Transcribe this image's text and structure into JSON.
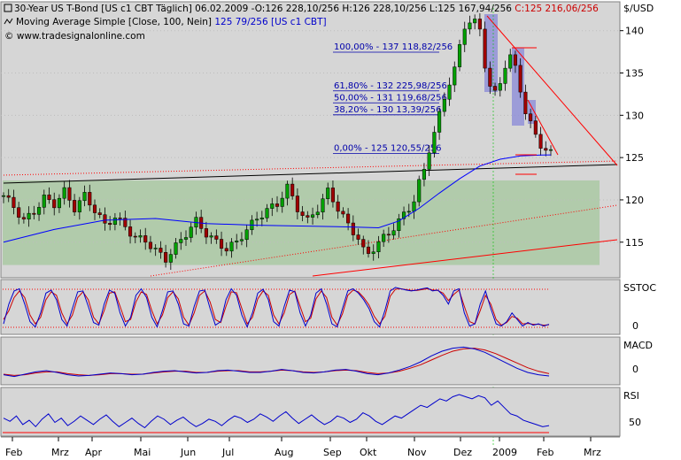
{
  "header": {
    "line1_name": "30-Year US T-Bond [US c1 CBT  Täglich]",
    "line1_date": "06.02.2009",
    "line1_open": "-O:126 228,10/256",
    "line1_hl": "H:126 228,10/256 L:125 167,94/256",
    "line1_close": "C:125 216,06/256",
    "line2_name": "Moving Average Simple [Close, 100, Nein]",
    "line2_value": "125 79/256",
    "line2_sym": "[US c1 CBT]",
    "line3": "© www.tradesignalonline.com"
  },
  "colors": {
    "background": "#d4d0c8",
    "plot": "#ffffff",
    "up_candle": "#00a000",
    "down_candle": "#a00000",
    "ma_line": "#0000ff",
    "trend_red": "#ff0000",
    "green_zone": "#a8c8a0",
    "blue_zone": "#8888d8",
    "stoch_k": "#0000cc",
    "stoch_d": "#cc0000"
  },
  "chart_data": [
    {
      "type": "candlestick",
      "instrument": "30-Year US T-Bond",
      "unit_label": "$/USD",
      "ylim": [
        111,
        143
      ],
      "yticks": [
        115,
        120,
        125,
        130,
        135,
        140
      ],
      "x_labels": [
        "Feb",
        "Mrz",
        "Apr",
        "Mai",
        "Jun",
        "Jul",
        "Aug",
        "Sep",
        "Okt",
        "Nov",
        "Dez",
        "2009",
        "Feb",
        "Mrz"
      ],
      "close_path": [
        [
          0,
          120.5
        ],
        [
          2,
          119.2
        ],
        [
          4,
          117.5
        ],
        [
          6,
          118.6
        ],
        [
          8,
          120.2
        ],
        [
          10,
          119.5
        ],
        [
          12,
          121.0
        ],
        [
          14,
          119.0
        ],
        [
          16,
          120.5
        ],
        [
          18,
          118.8
        ],
        [
          20,
          117.0
        ],
        [
          22,
          118.0
        ],
        [
          24,
          116.8
        ],
        [
          26,
          115.5
        ],
        [
          28,
          115.2
        ],
        [
          30,
          114.0
        ],
        [
          32,
          113.0
        ],
        [
          34,
          114.5
        ],
        [
          36,
          116.0
        ],
        [
          38,
          117.5
        ],
        [
          40,
          116.0
        ],
        [
          42,
          115.0
        ],
        [
          44,
          114.2
        ],
        [
          46,
          115.0
        ],
        [
          48,
          116.5
        ],
        [
          50,
          117.8
        ],
        [
          52,
          118.8
        ],
        [
          54,
          119.5
        ],
        [
          56,
          121.5
        ],
        [
          58,
          119.0
        ],
        [
          60,
          117.5
        ],
        [
          62,
          119.0
        ],
        [
          64,
          121.0
        ],
        [
          66,
          119.0
        ],
        [
          68,
          117.0
        ],
        [
          70,
          115.5
        ],
        [
          71,
          114.0
        ],
        [
          72,
          113.6
        ],
        [
          74,
          115.0
        ],
        [
          76,
          116.0
        ],
        [
          78,
          117.5
        ],
        [
          80,
          119.0
        ],
        [
          81,
          120.0
        ],
        [
          82,
          122.0
        ],
        [
          83,
          123.5
        ],
        [
          84,
          126.0
        ],
        [
          85,
          128.0
        ],
        [
          86,
          130.0
        ],
        [
          87,
          132.0
        ],
        [
          88,
          134.0
        ],
        [
          89,
          135.5
        ],
        [
          90,
          138.0
        ],
        [
          91,
          140.5
        ],
        [
          92,
          141.2
        ],
        [
          93,
          141.0
        ],
        [
          94,
          140.0
        ],
        [
          95,
          136.0
        ],
        [
          96,
          133.5
        ],
        [
          97,
          132.5
        ],
        [
          98,
          133.8
        ],
        [
          99,
          136.0
        ],
        [
          100,
          137.0
        ],
        [
          101,
          135.5
        ],
        [
          102,
          133.0
        ],
        [
          103,
          130.5
        ],
        [
          104,
          129.0
        ],
        [
          105,
          127.5
        ],
        [
          106,
          126.5
        ],
        [
          107,
          126.0
        ],
        [
          108,
          125.5
        ]
      ],
      "moving_average": [
        [
          0,
          115.0
        ],
        [
          10,
          116.5
        ],
        [
          20,
          117.6
        ],
        [
          30,
          117.8
        ],
        [
          40,
          117.2
        ],
        [
          50,
          117.0
        ],
        [
          60,
          116.9
        ],
        [
          68,
          116.8
        ],
        [
          74,
          116.7
        ],
        [
          78,
          117.5
        ],
        [
          82,
          119.0
        ],
        [
          86,
          120.8
        ],
        [
          90,
          122.5
        ],
        [
          94,
          124.0
        ],
        [
          98,
          124.8
        ],
        [
          102,
          125.2
        ],
        [
          106,
          125.3
        ],
        [
          108,
          125.31
        ]
      ],
      "fibonacci_levels": [
        {
          "label": "100,00% - 137 118,82/256",
          "value": 137.46
        },
        {
          "label": "61,80% - 132 225,98/256",
          "value": 132.88
        },
        {
          "label": "50,00% - 131 119,68/256",
          "value": 131.47
        },
        {
          "label": "38,20% - 130 13,39/256",
          "value": 130.05
        },
        {
          "label": "0,00% - 125 120,55/256",
          "value": 125.47
        }
      ],
      "channel_zone": {
        "from": 0,
        "to": 121,
        "low": 112.3,
        "high": 122.3
      }
    },
    {
      "type": "line",
      "name": "SSTOC",
      "yticks": [
        0
      ],
      "ylim": [
        -5,
        110
      ],
      "series": [
        {
          "values": [
            15,
            60,
            90,
            95,
            60,
            20,
            8,
            40,
            85,
            92,
            70,
            25,
            10,
            50,
            88,
            90,
            55,
            18,
            12,
            60,
            92,
            85,
            40,
            10,
            30,
            80,
            95,
            75,
            30,
            8,
            45,
            88,
            90,
            60,
            15,
            10,
            55,
            90,
            92,
            50,
            12,
            20,
            70,
            95,
            80,
            35,
            8,
            40,
            85,
            94,
            70,
            20,
            10,
            55,
            92,
            88,
            40,
            10,
            35,
            85,
            95,
            60,
            15,
            8,
            50,
            90,
            95,
            85,
            70,
            50,
            20,
            8,
            45,
            90,
            98,
            95,
            92,
            90,
            92,
            95,
            97,
            90,
            92,
            80,
            60,
            90,
            95,
            40,
            10,
            15,
            60,
            90,
            50,
            15,
            10,
            20,
            40,
            25,
            10,
            18,
            12,
            15,
            10,
            14
          ]
        },
        {
          "values": [
            25,
            45,
            75,
            90,
            75,
            35,
            15,
            30,
            70,
            88,
            80,
            40,
            15,
            35,
            75,
            88,
            70,
            30,
            15,
            45,
            85,
            88,
            55,
            20,
            25,
            65,
            88,
            82,
            45,
            15,
            35,
            75,
            88,
            72,
            30,
            12,
            40,
            80,
            90,
            65,
            25,
            18,
            55,
            88,
            86,
            50,
            15,
            30,
            72,
            90,
            80,
            35,
            15,
            40,
            82,
            90,
            55,
            20,
            28,
            72,
            90,
            75,
            30,
            12,
            38,
            80,
            92,
            88,
            75,
            58,
            32,
            15,
            32,
            78,
            94,
            95,
            93,
            91,
            91,
            93,
            95,
            92,
            91,
            85,
            68,
            82,
            92,
            55,
            20,
            15,
            45,
            80,
            60,
            25,
            12,
            18,
            32,
            28,
            15,
            16,
            14,
            14,
            12,
            13
          ]
        }
      ]
    },
    {
      "type": "line",
      "name": "MACD",
      "yticks": [
        0
      ],
      "ylim": [
        -2.0,
        5.5
      ],
      "series": [
        {
          "values": [
            -0.6,
            -0.9,
            -0.5,
            -0.1,
            0.1,
            -0.2,
            -0.6,
            -0.8,
            -0.7,
            -0.5,
            -0.3,
            -0.4,
            -0.6,
            -0.5,
            -0.2,
            0.0,
            0.1,
            -0.1,
            -0.3,
            -0.2,
            0.1,
            0.2,
            0.0,
            -0.2,
            -0.2,
            0.0,
            0.3,
            0.1,
            -0.2,
            -0.3,
            -0.1,
            0.2,
            0.3,
            0.0,
            -0.4,
            -0.6,
            -0.3,
            0.2,
            0.8,
            1.6,
            2.6,
            3.4,
            3.9,
            4.1,
            3.8,
            3.2,
            2.3,
            1.4,
            0.5,
            -0.2,
            -0.6,
            -0.8
          ]
        },
        {
          "values": [
            -0.5,
            -0.7,
            -0.6,
            -0.3,
            -0.1,
            -0.1,
            -0.4,
            -0.6,
            -0.7,
            -0.6,
            -0.4,
            -0.4,
            -0.5,
            -0.5,
            -0.3,
            -0.1,
            0.0,
            0.0,
            -0.2,
            -0.2,
            0.0,
            0.1,
            0.1,
            -0.1,
            -0.1,
            0.0,
            0.2,
            0.1,
            -0.1,
            -0.2,
            -0.1,
            0.1,
            0.2,
            0.1,
            -0.2,
            -0.4,
            -0.3,
            0.0,
            0.5,
            1.1,
            1.9,
            2.7,
            3.4,
            3.8,
            3.9,
            3.6,
            3.0,
            2.2,
            1.4,
            0.6,
            0.0,
            -0.4
          ]
        }
      ]
    },
    {
      "type": "line",
      "name": "RSI",
      "yticks": [
        50
      ],
      "ylim": [
        42,
        85
      ],
      "series": [
        {
          "values": [
            58,
            55,
            60,
            52,
            56,
            50,
            57,
            62,
            54,
            58,
            51,
            55,
            60,
            56,
            52,
            57,
            61,
            55,
            50,
            54,
            58,
            53,
            49,
            55,
            60,
            57,
            52,
            56,
            59,
            54,
            50,
            53,
            57,
            55,
            51,
            56,
            60,
            58,
            54,
            57,
            62,
            59,
            55,
            60,
            64,
            58,
            53,
            57,
            61,
            56,
            52,
            55,
            60,
            58,
            54,
            57,
            63,
            60,
            55,
            52,
            56,
            60,
            58,
            62,
            66,
            70,
            68,
            72,
            76,
            74,
            78,
            80,
            78,
            76,
            79,
            77,
            70,
            74,
            68,
            62,
            60,
            56,
            54,
            52,
            50,
            51
          ]
        }
      ]
    }
  ]
}
